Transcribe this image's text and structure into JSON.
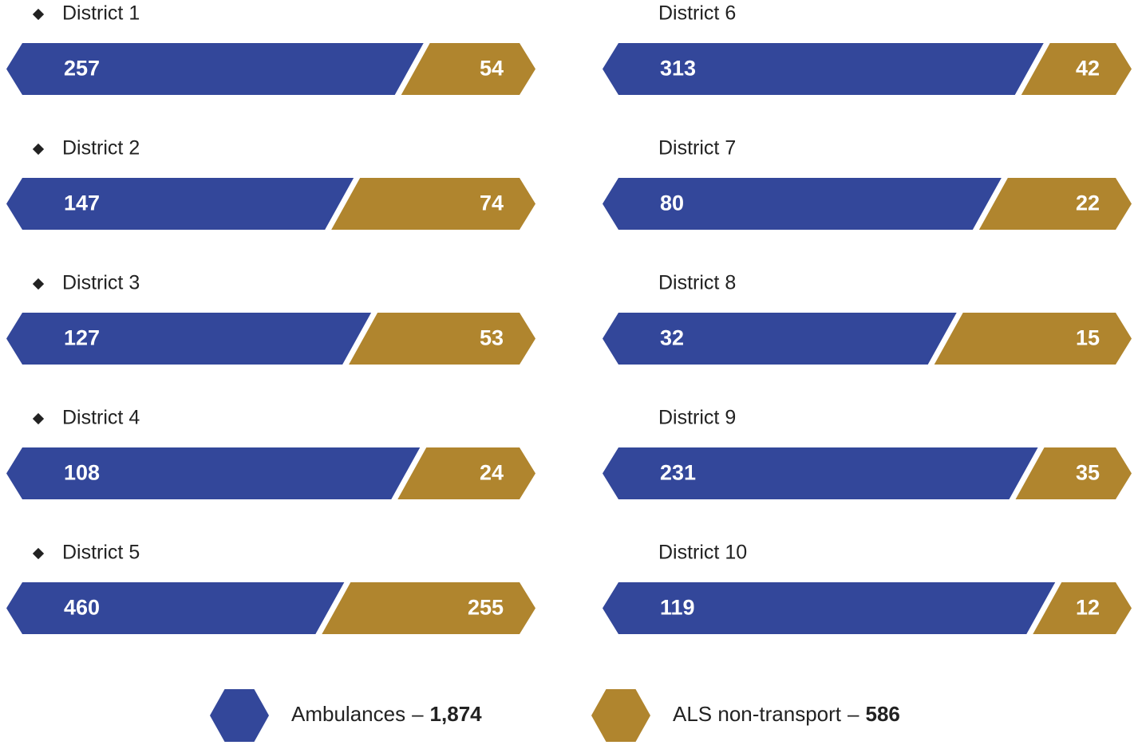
{
  "chart_data": {
    "type": "bar",
    "categories": [
      "District 1",
      "District 2",
      "District 3",
      "District 4",
      "District 5",
      "District 6",
      "District 7",
      "District 8",
      "District 9",
      "District 10"
    ],
    "series": [
      {
        "name": "Ambulances",
        "color": "#33479a",
        "values": [
          257,
          147,
          127,
          108,
          460,
          313,
          80,
          32,
          231,
          119
        ],
        "total": 1874,
        "total_label": "1,874"
      },
      {
        "name": "ALS non-transport",
        "color": "#b0852e",
        "values": [
          54,
          74,
          53,
          24,
          255,
          42,
          22,
          15,
          35,
          12
        ],
        "total": 586,
        "total_label": "586"
      }
    ],
    "legend_separator": "–"
  }
}
